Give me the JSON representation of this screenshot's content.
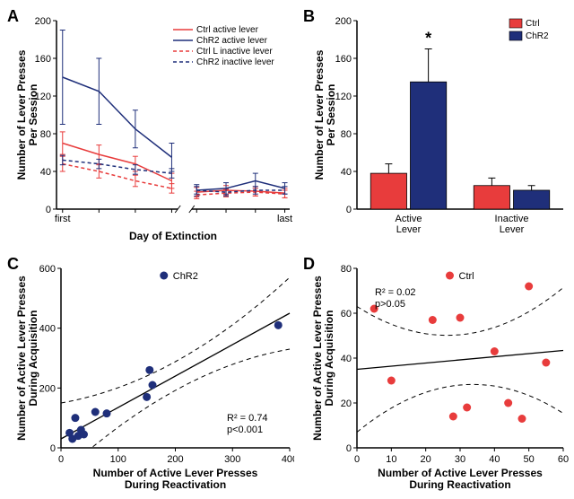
{
  "colors": {
    "ctrl": "#e83c3c",
    "chr2": "#1f2f7a",
    "axis": "#000000",
    "bg": "#ffffff",
    "ci": "#000000"
  },
  "panelA": {
    "label": "A",
    "type": "line",
    "xlabel": "Day of Extinction",
    "ylabel": "Number of Lever Presses\nPer Session",
    "ylim": [
      0,
      200
    ],
    "ytick_step": 40,
    "x_categories": [
      "first",
      "",
      "",
      "",
      "",
      "",
      "",
      "last"
    ],
    "break_after_index": 3,
    "legend": {
      "items": [
        {
          "text": "Ctrl active lever",
          "color": "#e83c3c",
          "dash": false
        },
        {
          "text": "ChR2 active lever",
          "color": "#1f2f7a",
          "dash": false
        },
        {
          "text": "Ctrl L inactive lever",
          "color": "#e83c3c",
          "dash": true
        },
        {
          "text": "ChR2 inactive lever",
          "color": "#1f2f7a",
          "dash": true
        }
      ]
    },
    "series": [
      {
        "name": "ctrl-active",
        "color": "#e83c3c",
        "dash": false,
        "y": [
          70,
          58,
          48,
          30,
          18,
          20,
          19,
          17
        ],
        "err": [
          12,
          10,
          8,
          8,
          5,
          5,
          5,
          5
        ]
      },
      {
        "name": "chr2-active",
        "color": "#1f2f7a",
        "dash": false,
        "y": [
          140,
          125,
          85,
          55,
          20,
          22,
          30,
          22
        ],
        "err": [
          50,
          35,
          20,
          15,
          6,
          6,
          8,
          6
        ]
      },
      {
        "name": "ctrl-inactive",
        "color": "#e83c3c",
        "dash": true,
        "y": [
          48,
          40,
          30,
          22,
          15,
          17,
          18,
          16
        ],
        "err": [
          8,
          7,
          6,
          5,
          4,
          4,
          4,
          4
        ]
      },
      {
        "name": "chr2-inactive",
        "color": "#1f2f7a",
        "dash": true,
        "y": [
          52,
          48,
          42,
          38,
          20,
          18,
          20,
          20
        ],
        "err": [
          5,
          5,
          5,
          5,
          4,
          4,
          4,
          4
        ]
      }
    ]
  },
  "panelB": {
    "label": "B",
    "type": "bar",
    "ylabel": "Number of Lever Presses\nPer Session",
    "ylim": [
      0,
      200
    ],
    "ytick_step": 40,
    "groups": [
      "Active\nLever",
      "Inactive\nLever"
    ],
    "legend": [
      {
        "text": "Ctrl",
        "color": "#e83c3c"
      },
      {
        "text": "ChR2",
        "color": "#1f2f7a"
      }
    ],
    "bars": [
      {
        "group": 0,
        "series": 0,
        "value": 38,
        "err": 10,
        "color": "#e83c3c"
      },
      {
        "group": 0,
        "series": 1,
        "value": 135,
        "err": 35,
        "color": "#1f2f7a",
        "sig": "*"
      },
      {
        "group": 1,
        "series": 0,
        "value": 25,
        "err": 8,
        "color": "#e83c3c"
      },
      {
        "group": 1,
        "series": 1,
        "value": 20,
        "err": 5,
        "color": "#1f2f7a"
      }
    ],
    "bar_width": 0.35
  },
  "panelC": {
    "label": "C",
    "type": "scatter",
    "xlabel": "Number of Active Lever Presses\nDuring Reactivation",
    "ylabel": "Number of Active Lever Presses\nDuring Acquisition",
    "xlim": [
      0,
      400
    ],
    "xtick_step": 100,
    "ylim": [
      0,
      600
    ],
    "ytick_step": 200,
    "marker_color": "#1f2f7a",
    "legend_text": "ChR2",
    "stats": [
      "R² = 0.74",
      "p<0.001"
    ],
    "points": [
      [
        15,
        50
      ],
      [
        20,
        30
      ],
      [
        25,
        100
      ],
      [
        30,
        40
      ],
      [
        35,
        60
      ],
      [
        40,
        45
      ],
      [
        60,
        120
      ],
      [
        80,
        115
      ],
      [
        150,
        170
      ],
      [
        155,
        260
      ],
      [
        160,
        210
      ],
      [
        380,
        410
      ]
    ],
    "fit": {
      "slope": 1.05,
      "intercept": 30
    },
    "ci_spread": 120
  },
  "panelD": {
    "label": "D",
    "type": "scatter",
    "xlabel": "Number of Active Lever Presses\nDuring Reactivation",
    "ylabel": "Number of Active Lever Presses\nDuring Acquisition",
    "xlim": [
      0,
      60
    ],
    "xtick_step": 10,
    "ylim": [
      0,
      80
    ],
    "ytick_step": 20,
    "marker_color": "#e83c3c",
    "legend_text": "Ctrl",
    "stats": [
      "R² = 0.02",
      "p>0.05"
    ],
    "points": [
      [
        5,
        62
      ],
      [
        10,
        30
      ],
      [
        22,
        57
      ],
      [
        28,
        14
      ],
      [
        30,
        58
      ],
      [
        32,
        18
      ],
      [
        40,
        43
      ],
      [
        44,
        20
      ],
      [
        48,
        13
      ],
      [
        50,
        72
      ],
      [
        55,
        38
      ]
    ],
    "fit": {
      "slope": 0.14,
      "intercept": 35
    },
    "ci_spread": 28
  }
}
